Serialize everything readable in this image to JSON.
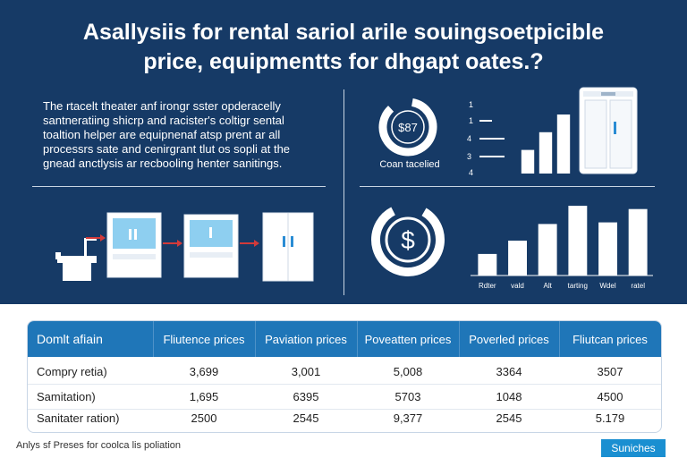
{
  "header": {
    "title_line1": "Asallysiis for rental sariol arile souingsoetpicible",
    "title_line2": "price, equipmentts for dhgapt oates.?"
  },
  "description": [
    "The rtacelt theater anf irongr sster opderacelly",
    "santneratiing shicrp and racister's coltigr sental",
    "toaltion helper are equipnenaf atsp prent ar all",
    "processrs sate and cenirgrant tlut os sopli at the",
    "gnead anctlysis ar recbooling henter sanitings."
  ],
  "donut": {
    "center_label": "$87",
    "caption": "Coan tacelied"
  },
  "mini_chart": {
    "labels": [
      "1",
      "1",
      "4",
      "3",
      "4"
    ]
  },
  "lower_icon": {
    "symbol": "$"
  },
  "colors": {
    "navy": "#163a66",
    "header_blue": "#1f76b8",
    "accent_red": "#d23a3a",
    "white": "#ffffff",
    "badge_blue": "#1a8fd1"
  },
  "chart_data": [
    {
      "type": "bar",
      "categories": [
        "",
        "",
        ""
      ],
      "values": [
        2,
        3.5,
        5
      ],
      "title": "",
      "xlabel": "",
      "ylabel": ""
    },
    {
      "type": "bar",
      "categories": [
        "Rdter",
        "vald",
        "Alt",
        "tarting",
        "Wdel",
        "ratel"
      ],
      "values": [
        1.3,
        2.1,
        3.1,
        4.2,
        3.2,
        4.0
      ],
      "title": "",
      "xlabel": "",
      "ylabel": ""
    }
  ],
  "table": {
    "headers": [
      "Domlt afiain",
      "Fliutence prices",
      "Paviation prices",
      "Poveatten prices",
      "Poverled prices",
      "Fliutcan prices"
    ],
    "rows": [
      [
        "Compry retia)",
        "3,699",
        "3,001",
        "5,008",
        "3364",
        "3507"
      ],
      [
        "Samitation)",
        "1,695",
        "6395",
        "5703",
        "1048",
        "4500"
      ],
      [
        "Sanitater ration)",
        "2500",
        "2545",
        "9,377",
        "2545",
        "5.179"
      ]
    ]
  },
  "footer": {
    "text": "Anlys sf Preses for coolca lis poliation",
    "badge": "Suniches"
  }
}
